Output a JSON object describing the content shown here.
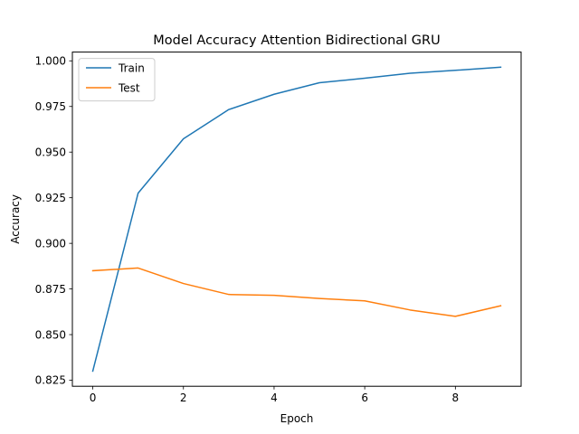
{
  "chart_data": {
    "type": "line",
    "title": "Model Accuracy Attention Bidirectional GRU",
    "xlabel": "Epoch",
    "ylabel": "Accuracy",
    "xlim": [
      -0.45,
      9.45
    ],
    "ylim": [
      0.8217,
      1.0048
    ],
    "x_ticks": [
      "0",
      "2",
      "4",
      "6",
      "8"
    ],
    "y_ticks": [
      "0.825",
      "0.850",
      "0.875",
      "0.900",
      "0.925",
      "0.950",
      "0.975",
      "1.000"
    ],
    "legend_position": "top-left",
    "grid": false,
    "x": [
      0,
      1,
      2,
      3,
      4,
      5,
      6,
      7,
      8,
      9
    ],
    "series": [
      {
        "name": "Train",
        "color": "#1f77b4",
        "values": [
          0.83,
          0.9275,
          0.9573,
          0.9733,
          0.9817,
          0.988,
          0.9905,
          0.9932,
          0.9948,
          0.9965
        ]
      },
      {
        "name": "Test",
        "color": "#ff7f0e",
        "values": [
          0.885,
          0.8865,
          0.878,
          0.872,
          0.8715,
          0.8698,
          0.8685,
          0.8635,
          0.86,
          0.8658
        ]
      }
    ]
  }
}
